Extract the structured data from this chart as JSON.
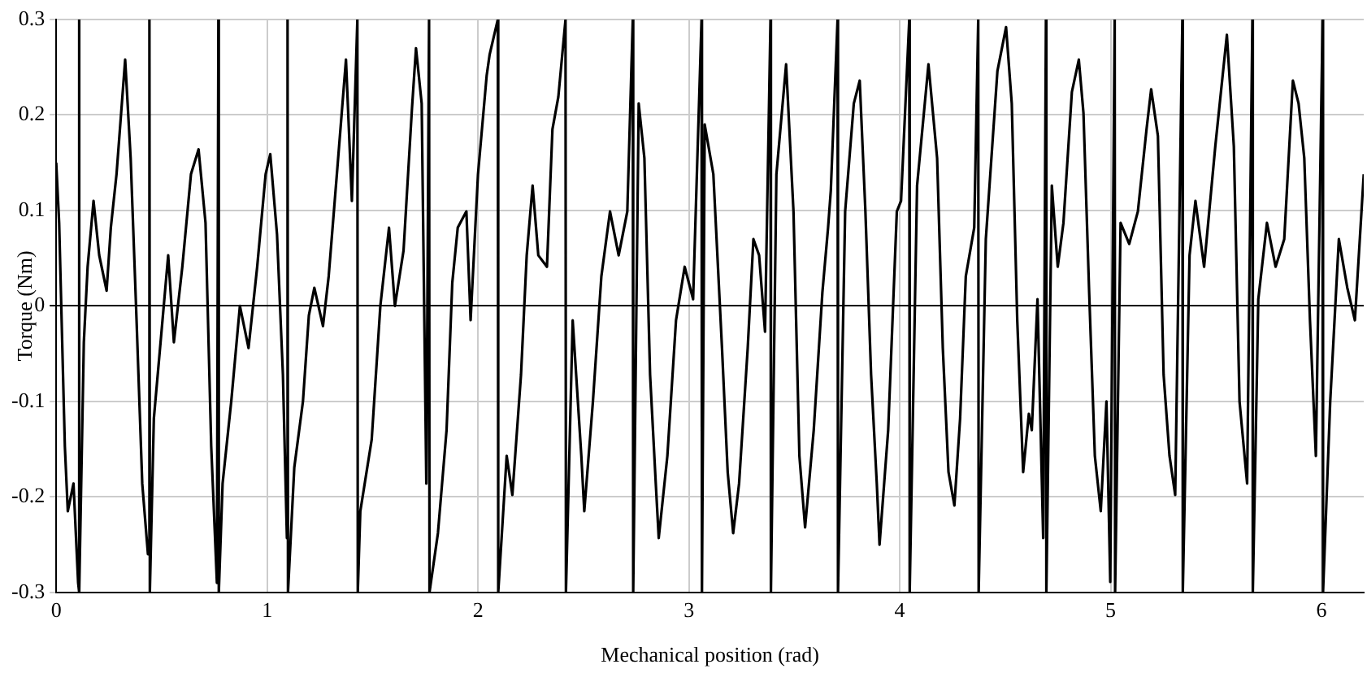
{
  "chart_data": {
    "type": "line",
    "xlabel": "Mechanical position (rad)",
    "ylabel": "Torque (Nm)",
    "xlim": [
      0,
      6.2
    ],
    "ylim": [
      -0.3,
      0.3
    ],
    "xticks": [
      0,
      1,
      2,
      3,
      4,
      5,
      6
    ],
    "yticks": [
      -0.3,
      -0.2,
      -0.1,
      0,
      0.1,
      0.2,
      0.3
    ],
    "grid": true,
    "marker": "none",
    "line_style": "solid",
    "series": [
      {
        "color": "#000000",
        "x": [
          0,
          0.014,
          0.041,
          0.055,
          0.082,
          0.104,
          0.108,
          0.11,
          0.131,
          0.149,
          0.177,
          0.204,
          0.239,
          0.259,
          0.286,
          0.327,
          0.353,
          0.381,
          0.408,
          0.435,
          0.442,
          0.444,
          0.463,
          0.504,
          0.531,
          0.558,
          0.598,
          0.639,
          0.675,
          0.708,
          0.735,
          0.762,
          0.769,
          0.771,
          0.789,
          0.83,
          0.871,
          0.912,
          0.953,
          0.993,
          1.015,
          1.047,
          1.075,
          1.094,
          1.097,
          1.099,
          1.129,
          1.17,
          1.198,
          1.224,
          1.265,
          1.292,
          1.333,
          1.374,
          1.402,
          1.428,
          1.43,
          1.442,
          1.496,
          1.537,
          1.578,
          1.606,
          1.647,
          1.687,
          1.706,
          1.733,
          1.755,
          1.768,
          1.77,
          1.81,
          1.851,
          1.878,
          1.904,
          1.945,
          1.965,
          2.0,
          2.041,
          2.055,
          2.094,
          2.096,
          2.136,
          2.163,
          2.204,
          2.231,
          2.259,
          2.286,
          2.327,
          2.353,
          2.381,
          2.415,
          2.417,
          2.449,
          2.49,
          2.504,
          2.545,
          2.585,
          2.626,
          2.667,
          2.708,
          2.734,
          2.736,
          2.762,
          2.789,
          2.816,
          2.843,
          2.857,
          2.898,
          2.939,
          2.98,
          3.02,
          3.06,
          3.062,
          3.075,
          3.116,
          3.157,
          3.184,
          3.21,
          3.238,
          3.279,
          3.306,
          3.333,
          3.361,
          3.387,
          3.389,
          3.415,
          3.461,
          3.496,
          3.524,
          3.551,
          3.592,
          3.633,
          3.66,
          3.673,
          3.705,
          3.707,
          3.741,
          3.782,
          3.81,
          3.837,
          3.864,
          3.891,
          3.904,
          3.945,
          3.986,
          4.006,
          4.045,
          4.047,
          4.082,
          4.136,
          4.177,
          4.204,
          4.231,
          4.259,
          4.286,
          4.313,
          4.353,
          4.372,
          4.374,
          4.408,
          4.463,
          4.504,
          4.531,
          4.557,
          4.585,
          4.612,
          4.626,
          4.653,
          4.68,
          4.693,
          4.695,
          4.721,
          4.749,
          4.776,
          4.816,
          4.849,
          4.871,
          4.898,
          4.925,
          4.953,
          4.98,
          4.998,
          5.019,
          5.021,
          5.047,
          5.088,
          5.129,
          5.17,
          5.192,
          5.224,
          5.251,
          5.279,
          5.306,
          5.34,
          5.342,
          5.374,
          5.402,
          5.443,
          5.496,
          5.551,
          5.584,
          5.611,
          5.647,
          5.672,
          5.674,
          5.7,
          5.741,
          5.782,
          5.823,
          5.864,
          5.891,
          5.918,
          5.945,
          5.973,
          6.005,
          6.007,
          6.041,
          6.082,
          6.122,
          6.158,
          6.2
        ],
        "values": [
          0.15,
          0.087,
          -0.147,
          -0.215,
          -0.186,
          -0.29,
          0.3,
          -0.3,
          -0.038,
          0.041,
          0.11,
          0.053,
          0.016,
          0.082,
          0.138,
          0.258,
          0.155,
          -0.015,
          -0.186,
          -0.26,
          0.3,
          -0.3,
          -0.118,
          -0.015,
          0.053,
          -0.038,
          0.041,
          0.138,
          0.164,
          0.087,
          -0.147,
          -0.29,
          0.3,
          -0.3,
          -0.186,
          -0.1,
          0,
          -0.044,
          0.041,
          0.138,
          0.159,
          0.075,
          -0.072,
          -0.243,
          0.3,
          -0.3,
          -0.169,
          -0.1,
          -0.01,
          0.019,
          -0.021,
          0.031,
          0.144,
          0.258,
          0.11,
          0.3,
          -0.3,
          -0.215,
          -0.14,
          0,
          0.082,
          0,
          0.058,
          0.207,
          0.27,
          0.212,
          -0.186,
          0.3,
          -0.3,
          -0.238,
          -0.13,
          0.024,
          0.082,
          0.099,
          -0.015,
          0.138,
          0.241,
          0.263,
          0.3,
          -0.3,
          -0.157,
          -0.198,
          -0.072,
          0.053,
          0.126,
          0.053,
          0.041,
          0.185,
          0.219,
          0.3,
          -0.3,
          -0.015,
          -0.157,
          -0.215,
          -0.1,
          0.031,
          0.099,
          0.053,
          0.099,
          0.3,
          -0.3,
          0.212,
          0.155,
          -0.072,
          -0.186,
          -0.243,
          -0.157,
          -0.015,
          0.041,
          0.007,
          0.3,
          -0.3,
          0.19,
          0.138,
          -0.044,
          -0.174,
          -0.238,
          -0.186,
          -0.044,
          0.07,
          0.053,
          -0.027,
          0.3,
          -0.3,
          0.138,
          0.253,
          0.099,
          -0.157,
          -0.232,
          -0.13,
          0.014,
          0.082,
          0.121,
          0.3,
          -0.3,
          0.099,
          0.212,
          0.236,
          0.099,
          -0.072,
          -0.186,
          -0.25,
          -0.13,
          0.099,
          0.11,
          0.3,
          -0.3,
          0.126,
          0.253,
          0.155,
          -0.044,
          -0.174,
          -0.209,
          -0.118,
          0.031,
          0.082,
          0.3,
          -0.3,
          0.07,
          0.246,
          0.292,
          0.212,
          -0.015,
          -0.174,
          -0.113,
          -0.13,
          0.007,
          -0.243,
          0.3,
          -0.3,
          0.126,
          0.041,
          0.087,
          0.224,
          0.258,
          0.202,
          0.014,
          -0.157,
          -0.215,
          -0.1,
          -0.289,
          0.3,
          -0.3,
          0.087,
          0.065,
          0.099,
          0.185,
          0.227,
          0.178,
          -0.072,
          -0.157,
          -0.198,
          0.3,
          -0.3,
          0.053,
          0.11,
          0.041,
          0.167,
          0.284,
          0.167,
          -0.1,
          -0.186,
          0.3,
          -0.3,
          0.007,
          0.087,
          0.041,
          0.07,
          0.236,
          0.212,
          0.155,
          -0.015,
          -0.157,
          0.3,
          -0.3,
          -0.1,
          0.07,
          0.019,
          -0.015,
          0.138
        ]
      }
    ]
  }
}
